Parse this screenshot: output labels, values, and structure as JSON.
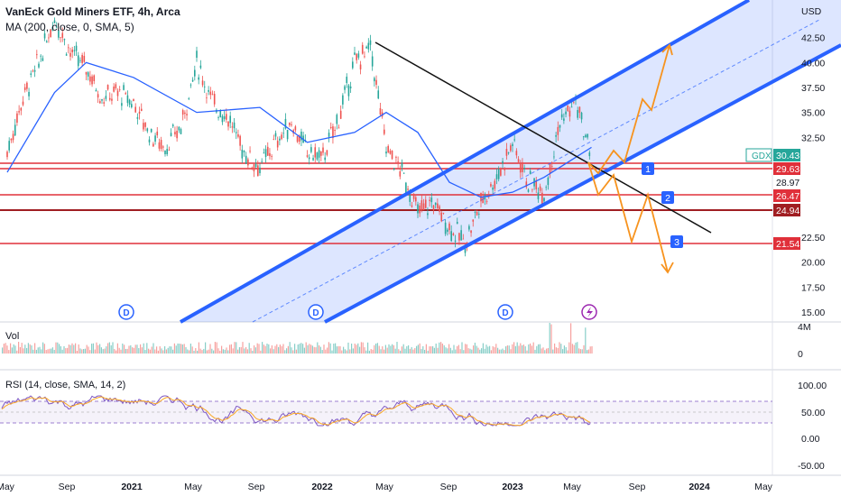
{
  "header": {
    "title": "VanEck Gold Miners ETF, 4h, Arca",
    "ma_label": "MA (200, close, 0, SMA, 5)"
  },
  "currency": "USD",
  "chart_data": [
    {
      "type": "line",
      "title": "VanEck Gold Miners ETF, 4h, Arca",
      "ticker": "GDX",
      "last_price": "30.43",
      "y_ticks": [
        "42.50",
        "40.00",
        "37.50",
        "35.00",
        "32.50",
        "22.50",
        "20.00",
        "17.50",
        "15.00"
      ],
      "ylim": [
        14,
        45
      ],
      "x_ticks": [
        {
          "label": "May",
          "bold": false
        },
        {
          "label": "Sep",
          "bold": false
        },
        {
          "label": "2021",
          "bold": true
        },
        {
          "label": "May",
          "bold": false
        },
        {
          "label": "Sep",
          "bold": false
        },
        {
          "label": "2022",
          "bold": true
        },
        {
          "label": "May",
          "bold": false
        },
        {
          "label": "Sep",
          "bold": false
        },
        {
          "label": "2023",
          "bold": true
        },
        {
          "label": "May",
          "bold": false
        },
        {
          "label": "Sep",
          "bold": false
        },
        {
          "label": "2024",
          "bold": true
        },
        {
          "label": "May",
          "bold": false
        }
      ],
      "price_path": [
        [
          "2020-05",
          31.0
        ],
        [
          "2020-06",
          36.5
        ],
        [
          "2020-07",
          40.0
        ],
        [
          "2020-08",
          44.5
        ],
        [
          "2020-09",
          41.0
        ],
        [
          "2020-10",
          39.5
        ],
        [
          "2020-11",
          36.5
        ],
        [
          "2020-12",
          37.0
        ],
        [
          "2021-01",
          36.0
        ],
        [
          "2021-02",
          33.0
        ],
        [
          "2021-03",
          31.5
        ],
        [
          "2021-04",
          33.5
        ],
        [
          "2021-05",
          40.0
        ],
        [
          "2021-06",
          36.0
        ],
        [
          "2021-07",
          34.5
        ],
        [
          "2021-08",
          31.0
        ],
        [
          "2021-09",
          29.5
        ],
        [
          "2021-10",
          32.0
        ],
        [
          "2021-11",
          34.0
        ],
        [
          "2021-12",
          31.0
        ],
        [
          "2022-01",
          30.5
        ],
        [
          "2022-02",
          34.5
        ],
        [
          "2022-03",
          40.0
        ],
        [
          "2022-04",
          41.5
        ],
        [
          "2022-05",
          31.5
        ],
        [
          "2022-06",
          29.0
        ],
        [
          "2022-07",
          25.0
        ],
        [
          "2022-08",
          26.0
        ],
        [
          "2022-09",
          23.5
        ],
        [
          "2022-10",
          22.0
        ],
        [
          "2022-11",
          26.0
        ],
        [
          "2022-12",
          28.5
        ],
        [
          "2023-01",
          32.0
        ],
        [
          "2023-02",
          28.0
        ],
        [
          "2023-03",
          27.0
        ],
        [
          "2023-04",
          34.0
        ],
        [
          "2023-05",
          36.0
        ],
        [
          "2023-06",
          30.43
        ]
      ],
      "ma200_path": [
        [
          "2020-05",
          29.0
        ],
        [
          "2020-08",
          37.0
        ],
        [
          "2020-10",
          40.0
        ],
        [
          "2021-01",
          38.5
        ],
        [
          "2021-05",
          35.0
        ],
        [
          "2021-09",
          35.5
        ],
        [
          "2021-12",
          32.0
        ],
        [
          "2022-03",
          33.0
        ],
        [
          "2022-05",
          35.0
        ],
        [
          "2022-07",
          33.0
        ],
        [
          "2022-09",
          28.0
        ],
        [
          "2022-11",
          26.5
        ],
        [
          "2023-01",
          27.0
        ],
        [
          "2023-03",
          28.5
        ],
        [
          "2023-05",
          30.5
        ],
        [
          "2023-06",
          31.5
        ]
      ],
      "series": [
        {
          "name": "GDX",
          "color": "#26a69a"
        },
        {
          "name": "MA (200, close, 0, SMA, 5)",
          "color": "#2962ff"
        }
      ],
      "horizontal_levels": [
        {
          "value": "29.63",
          "color": "#e0303a",
          "style": "filled"
        },
        {
          "value": "28.97",
          "color": "#e0303a",
          "style": "outline"
        },
        {
          "value": "26.47",
          "color": "#e0303a",
          "style": "filled"
        },
        {
          "value": "24.94",
          "color": "#a01e22",
          "style": "filled"
        },
        {
          "value": "21.54",
          "color": "#e0303a",
          "style": "filled"
        }
      ],
      "target_markers": [
        "1",
        "2",
        "3"
      ],
      "dividend_markers": [
        "D",
        "D",
        "D"
      ],
      "accent": "#2962ff"
    },
    {
      "type": "bar",
      "title": "Vol",
      "y_ticks": [
        "4M",
        "0"
      ]
    },
    {
      "type": "line",
      "title": "RSI (14, close, SMA, 14, 2)",
      "y_ticks": [
        "100.00",
        "50.00",
        "0.00",
        "-50.00"
      ],
      "upper_band": 70,
      "lower_band": 30,
      "colors": {
        "rsi": "#7e57c2",
        "signal": "#f9a825"
      }
    }
  ]
}
